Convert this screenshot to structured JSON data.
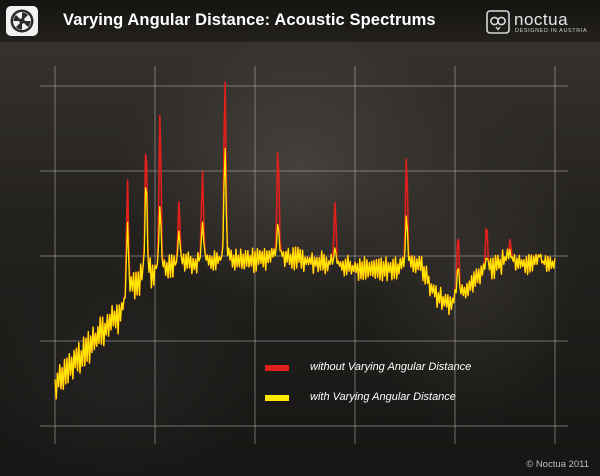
{
  "header": {
    "title": "Varying Angular Distance: Acoustic Spectrums",
    "brand_name": "noctua",
    "brand_tagline": "DESIGNED IN AUSTRIA"
  },
  "footer": {
    "copyright": "© Noctua 2011"
  },
  "colors": {
    "without_series": "#e0201c",
    "with_series": "#ffe800",
    "grid": "#b9b6b0"
  },
  "chart_data": {
    "type": "line",
    "title": "Varying Angular Distance: Acoustic Spectrums",
    "xlabel": "",
    "ylabel": "",
    "xlim": [
      0,
      100
    ],
    "ylim": [
      0,
      4
    ],
    "grid": true,
    "x_gridlines": 6,
    "y_gridlines": 5,
    "tick_labels": false,
    "legend_position": "bottom-right",
    "baseline": [
      [
        0,
        0.5
      ],
      [
        5,
        0.8
      ],
      [
        10,
        1.15
      ],
      [
        13,
        1.3
      ],
      [
        16,
        1.65
      ],
      [
        20,
        1.85
      ],
      [
        25,
        1.9
      ],
      [
        30,
        1.95
      ],
      [
        35,
        1.95
      ],
      [
        40,
        1.95
      ],
      [
        45,
        2.0
      ],
      [
        50,
        1.95
      ],
      [
        55,
        1.9
      ],
      [
        60,
        1.85
      ],
      [
        65,
        1.85
      ],
      [
        70,
        1.85
      ],
      [
        73,
        1.9
      ],
      [
        76,
        1.55
      ],
      [
        79,
        1.4
      ],
      [
        82,
        1.6
      ],
      [
        86,
        1.8
      ],
      [
        90,
        1.95
      ],
      [
        95,
        1.9
      ],
      [
        100,
        1.9
      ]
    ],
    "series": [
      {
        "name": "without Varying Angular Distance",
        "color": "#e0201c",
        "peaks": [
          [
            14.5,
            2.9
          ],
          [
            18.2,
            3.4
          ],
          [
            21.0,
            3.7
          ],
          [
            24.8,
            2.65
          ],
          [
            29.5,
            3.0
          ],
          [
            34.0,
            4.1
          ],
          [
            44.6,
            3.3
          ],
          [
            56.0,
            2.65
          ],
          [
            70.3,
            3.2
          ],
          [
            80.6,
            2.3
          ],
          [
            86.3,
            2.4
          ],
          [
            91.0,
            2.2
          ],
          [
            97.0,
            2.0
          ]
        ]
      },
      {
        "name": "with Varying Angular Distance",
        "color": "#ffe800",
        "peaks": [
          [
            14.5,
            2.4
          ],
          [
            18.2,
            2.95
          ],
          [
            21.0,
            2.6
          ],
          [
            24.8,
            2.3
          ],
          [
            29.5,
            2.4
          ],
          [
            34.0,
            3.3
          ],
          [
            44.6,
            2.4
          ],
          [
            56.0,
            2.1
          ],
          [
            70.3,
            2.5
          ],
          [
            80.6,
            1.9
          ],
          [
            86.3,
            2.0
          ],
          [
            91.0,
            2.0
          ],
          [
            97.0,
            2.0
          ]
        ]
      }
    ],
    "legend": [
      {
        "label": "without Varying Angular Distance",
        "color": "#e0201c"
      },
      {
        "label": "with Varying Angular Distance",
        "color": "#ffe800"
      }
    ]
  }
}
